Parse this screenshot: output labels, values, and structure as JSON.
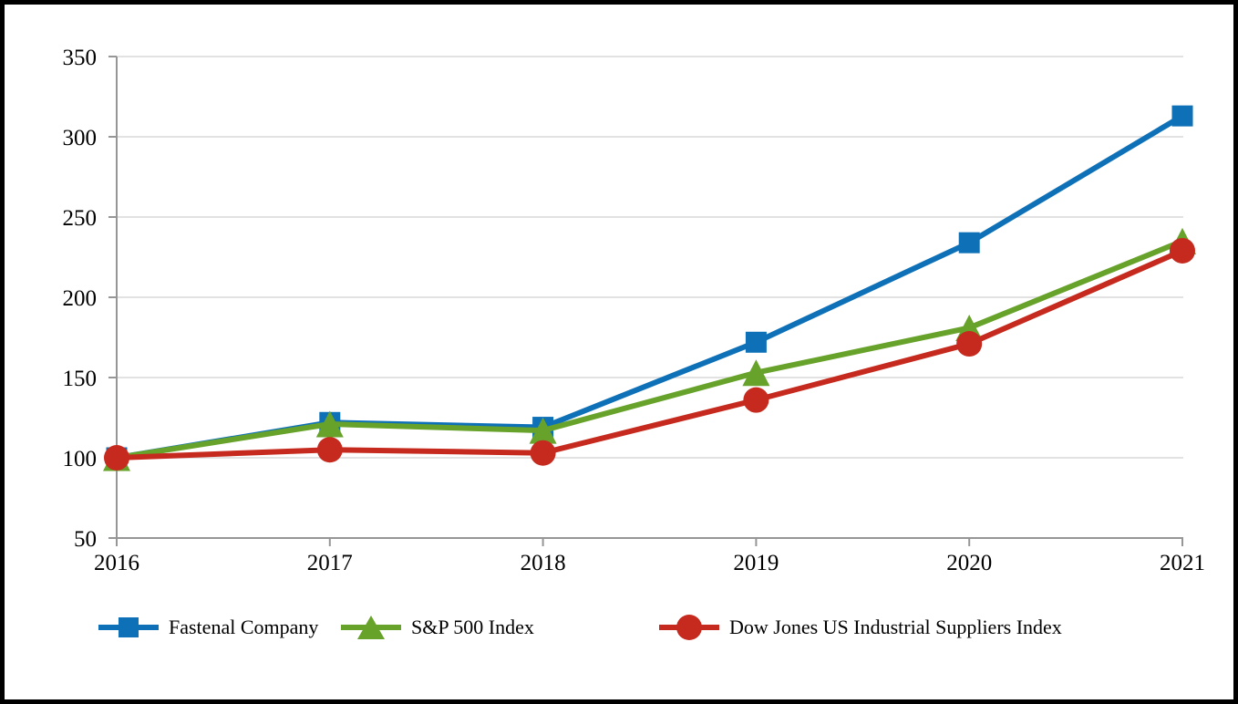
{
  "chart_data": {
    "type": "line",
    "title": "",
    "xlabel": "",
    "ylabel": "",
    "categories": [
      "2016",
      "2017",
      "2018",
      "2019",
      "2020",
      "2021"
    ],
    "series": [
      {
        "name": "Fastenal Company",
        "marker": "square",
        "color": "#0E71B8",
        "values": [
          100,
          122,
          119,
          172,
          234,
          313
        ]
      },
      {
        "name": "S&P 500 Index",
        "marker": "triangle",
        "color": "#67A22A",
        "values": [
          100,
          121,
          117,
          153,
          181,
          235
        ]
      },
      {
        "name": "Dow Jones US Industrial Suppliers Index",
        "marker": "circle",
        "color": "#C62A1E",
        "values": [
          100,
          105,
          103,
          136,
          171,
          229
        ]
      }
    ],
    "ylim": [
      50,
      350
    ],
    "ytick_interval": 50,
    "yticks": [
      50,
      100,
      150,
      200,
      250,
      300,
      350
    ],
    "grid": "horizontal",
    "legend_position": "bottom",
    "axis_color": "#969696",
    "grid_color": "#D9D9D9",
    "text_color": "#000000",
    "background_color": "#FFFFFF",
    "border_color": "#000000"
  }
}
